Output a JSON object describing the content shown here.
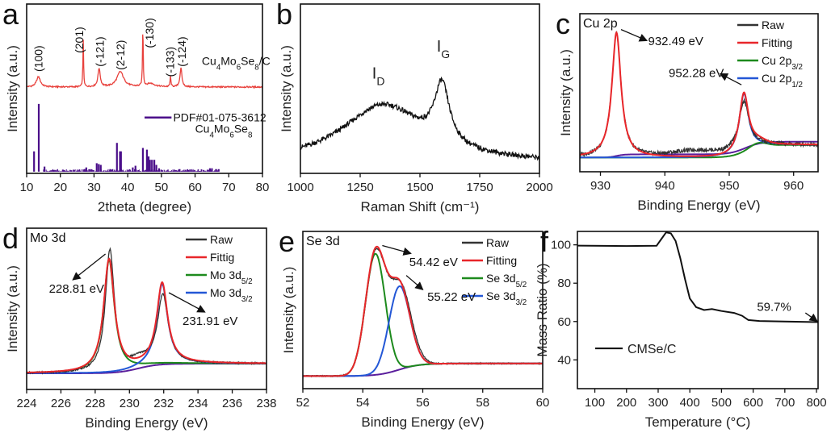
{
  "chart_data": [
    {
      "panel": "a",
      "type": "line",
      "xlabel": "2theta (degree)",
      "ylabel": "Intensity (a.u.)",
      "xlim": [
        10,
        80
      ],
      "ylim": [
        0,
        1
      ],
      "xticks": [
        10,
        20,
        30,
        40,
        50,
        60,
        70,
        80
      ],
      "series": [
        {
          "label": [
            "Cu",
            "4",
            "Mo",
            "6",
            "Se",
            "8",
            "/C"
          ],
          "color": "#e8413c",
          "baseline": [
            0.51,
            0,
            50,
            1
          ],
          "noise": 0.008,
          "seed": 1,
          "peaks": [
            {
              "c": 13.5,
              "h": 0.06,
              "w": 0.7,
              "shape": "lorentz"
            },
            {
              "c": 26.8,
              "h": 0.28,
              "w": 0.12,
              "shape": "lorentz"
            },
            {
              "c": 31.5,
              "h": 0.11,
              "w": 0.4,
              "shape": "lorentz"
            },
            {
              "c": 37.8,
              "h": 0.09,
              "w": 1.2,
              "shape": "lorentz"
            },
            {
              "c": 44.5,
              "h": 0.38,
              "w": 0.12,
              "shape": "lorentz"
            },
            {
              "c": 46.8,
              "h": 0.02,
              "w": 1.5,
              "shape": "lorentz"
            },
            {
              "c": 52.7,
              "h": 0.06,
              "w": 0.15,
              "shape": "lorentz"
            },
            {
              "c": 55.8,
              "h": 0.11,
              "w": 0.35,
              "shape": "lorentz"
            }
          ]
        }
      ],
      "reference": {
        "label": "PDF#01-075-3612",
        "sublabel": [
          "Cu",
          "4",
          "Mo",
          "6",
          "Se",
          "8"
        ],
        "color": "#4b0f8a",
        "bars": [
          [
            12.2,
            0.12
          ],
          [
            13.6,
            0.4
          ],
          [
            15.3,
            0.03
          ],
          [
            18,
            0.01
          ],
          [
            21,
            0.01
          ],
          [
            27.2,
            0.015
          ],
          [
            27.7,
            0.025
          ],
          [
            30.8,
            0.05
          ],
          [
            31.4,
            0.045
          ],
          [
            32.0,
            0.04
          ],
          [
            34.8,
            0.015
          ],
          [
            36.8,
            0.17
          ],
          [
            37.7,
            0.12
          ],
          [
            38.0,
            0.12
          ],
          [
            41.5,
            0.025
          ],
          [
            42.3,
            0.035
          ],
          [
            44.5,
            0.14
          ],
          [
            45.7,
            0.13
          ],
          [
            46.2,
            0.09
          ],
          [
            46.6,
            0.07
          ],
          [
            47.2,
            0.07
          ],
          [
            47.9,
            0.07
          ],
          [
            48.5,
            0.04
          ],
          [
            49.3,
            0.02
          ],
          [
            55.4,
            0.015
          ],
          [
            58,
            0.01
          ],
          [
            64.4,
            0.02
          ],
          [
            65,
            0.02
          ],
          [
            66.2,
            0.015
          ],
          [
            67,
            0.015
          ]
        ]
      },
      "peak_labels": [
        {
          "text": "(100)",
          "x": 13.5,
          "y": 0.6
        },
        {
          "text": "(201)",
          "x": 25.6,
          "y": 0.71
        },
        {
          "text": "(-121)",
          "x": 31.7,
          "y": 0.63
        },
        {
          "text": "(2-12)",
          "x": 37.8,
          "y": 0.61
        },
        {
          "text": "(-130)",
          "x": 46.4,
          "y": 0.74
        },
        {
          "text": "(-133)",
          "x": 52.6,
          "y": 0.57
        },
        {
          "text": "(-124)",
          "x": 56.0,
          "y": 0.63
        }
      ]
    },
    {
      "panel": "b",
      "type": "line",
      "xlabel": "Raman Shift (cm⁻¹)",
      "ylabel": "Intensity (a.u.)",
      "xlim": [
        1000,
        2000
      ],
      "ylim": [
        0,
        1
      ],
      "xticks": [
        1000,
        1250,
        1500,
        1750,
        2000
      ],
      "series": [
        {
          "color": "#111111",
          "baseline": [
            0.06,
            0.0,
            1500,
            50
          ],
          "noise": 0.03,
          "seed": 2,
          "peaks": [
            {
              "c": 1345,
              "h": 0.34,
              "w": 210,
              "shape": "lorentz"
            },
            {
              "c": 1592,
              "h": 0.35,
              "w": 38,
              "shape": "lorentz"
            }
          ]
        }
      ],
      "annotations": [
        {
          "text": [
            "I",
            "D"
          ],
          "tx": 1300,
          "ty": 0.56
        },
        {
          "text": [
            "I",
            "G"
          ],
          "tx": 1570,
          "ty": 0.72
        }
      ]
    },
    {
      "panel": "c",
      "region": "Cu 2p",
      "type": "line",
      "xlabel": "Binding Energy (eV)",
      "ylabel": "Intensity (a.u.)",
      "xlim": [
        926.8,
        963.8
      ],
      "ylim": [
        0,
        1
      ],
      "xticks": [
        930,
        940,
        950,
        960
      ],
      "series": [
        {
          "color": "#5a1e9c",
          "baseline": [
            0.09,
            0.08,
            952.5,
            1.2
          ],
          "peaks": [
            {
              "c": 932.5,
              "h": 0.02,
              "w": 0.6,
              "shape": "step"
            }
          ]
        },
        {
          "label": [
            "Cu 2p",
            "3/2"
          ],
          "color": "#1d8a1d",
          "baseline": [
            0.09,
            0.08,
            952.5,
            1.2
          ],
          "peaks": [
            {
              "c": 954.5,
              "h": 0.025,
              "w": 1.2,
              "shape": "gauss"
            }
          ]
        },
        {
          "label": [
            "Cu 2p",
            "1/2"
          ],
          "color": "#2357d6",
          "baseline": [
            0.09,
            0.08,
            952.5,
            1.2
          ],
          "peaks": [
            {
              "c": 952.28,
              "h": 0.37,
              "w": 0.85,
              "shape": "lorentz"
            }
          ]
        },
        {
          "label": [
            "Raw"
          ],
          "color": "#333333",
          "baseline": [
            0.09,
            0.08,
            952.5,
            1.2
          ],
          "noise": 0.025,
          "seed": 3,
          "peaks": [
            {
              "c": 932.49,
              "h": 0.79,
              "w": 0.85,
              "shape": "lorentz"
            },
            {
              "c": 952.28,
              "h": 0.31,
              "w": 1.0,
              "shape": "lorentz"
            },
            {
              "c": 945,
              "h": 0.04,
              "w": 4,
              "shape": "gauss"
            }
          ]
        },
        {
          "label": [
            "Fitting"
          ],
          "color": "#e8262a",
          "baseline": [
            0.09,
            0.08,
            952.5,
            1.2
          ],
          "peaks": [
            {
              "c": 932.49,
              "h": 0.79,
              "w": 0.85,
              "shape": "lorentz"
            },
            {
              "c": 952.28,
              "h": 0.37,
              "w": 0.85,
              "shape": "lorentz"
            },
            {
              "c": 954.5,
              "h": 0.025,
              "w": 1.2,
              "shape": "gauss"
            }
          ]
        }
      ],
      "legend_order": [
        3,
        4,
        1,
        2
      ],
      "annotations": [
        {
          "text": [
            "932.49 eV"
          ],
          "tx": 937.4,
          "ty": 0.8,
          "arrow": [
            933.2,
            0.9,
            937.2,
            0.83
          ]
        },
        {
          "text": [
            "952.28 eV"
          ],
          "tx": 940.6,
          "ty": 0.6,
          "arrow": [
            951.9,
            0.55,
            948.6,
            0.62
          ]
        }
      ]
    },
    {
      "panel": "d",
      "region": "Mo 3d",
      "type": "line",
      "xlabel": "Binding Energy (eV)",
      "ylabel": "Intensity (a.u.)",
      "xlim": [
        224,
        238
      ],
      "ylim": [
        0,
        1
      ],
      "xticks": [
        224,
        226,
        228,
        230,
        232,
        234,
        236,
        238
      ],
      "series": [
        {
          "color": "#5a1e9c",
          "baseline": [
            0.1,
            0.06,
            230.5,
            0.6
          ],
          "peaks": []
        },
        {
          "label": [
            "Mo 3d",
            "5/2"
          ],
          "color": "#1d8a1d",
          "baseline": [
            0.1,
            0.06,
            230.5,
            0.6
          ],
          "peaks": [
            {
              "c": 228.81,
              "h": 0.7,
              "w": 0.38,
              "shape": "lorentz"
            }
          ]
        },
        {
          "label": [
            "Mo 3d",
            "3/2"
          ],
          "color": "#2357d6",
          "baseline": [
            0.1,
            0.06,
            230.5,
            0.6
          ],
          "peaks": [
            {
              "c": 231.91,
              "h": 0.5,
              "w": 0.38,
              "shape": "lorentz"
            }
          ]
        },
        {
          "label": [
            "Raw"
          ],
          "color": "#333333",
          "baseline": [
            0.1,
            0.06,
            230.5,
            0.6
          ],
          "noise": 0.01,
          "seed": 4,
          "peaks": [
            {
              "c": 228.86,
              "h": 0.76,
              "w": 0.32,
              "shape": "lorentz"
            },
            {
              "c": 231.95,
              "h": 0.43,
              "w": 0.38,
              "shape": "lorentz"
            },
            {
              "c": 230.6,
              "h": 0.04,
              "w": 0.5,
              "shape": "gauss"
            }
          ]
        },
        {
          "label": [
            "Fittig"
          ],
          "color": "#e8262a",
          "baseline": [
            0.1,
            0.06,
            230.5,
            0.6
          ],
          "peaks": [
            {
              "c": 228.81,
              "h": 0.7,
              "w": 0.38,
              "shape": "lorentz"
            },
            {
              "c": 231.91,
              "h": 0.5,
              "w": 0.38,
              "shape": "lorentz"
            }
          ]
        }
      ],
      "legend_order": [
        3,
        4,
        1,
        2
      ],
      "annotations": [
        {
          "text": [
            "228.81 eV"
          ],
          "tx": 225.3,
          "ty": 0.6,
          "arrow": [
            228.6,
            0.84,
            226.7,
            0.68
          ]
        },
        {
          "text": [
            "231.91 eV"
          ],
          "tx": 233.1,
          "ty": 0.4,
          "arrow": [
            232.3,
            0.6,
            234.4,
            0.48
          ]
        }
      ]
    },
    {
      "panel": "e",
      "region": "Se 3d",
      "type": "line",
      "xlabel": "Binding Energy (eV)",
      "ylabel": "Intensity (a.u.)",
      "xlim": [
        52,
        60
      ],
      "ylim": [
        0,
        1
      ],
      "xticks": [
        52,
        54,
        56,
        58,
        60
      ],
      "series": [
        {
          "color": "#5a1e9c",
          "baseline": [
            0.08,
            0.08,
            55.2,
            0.35
          ],
          "peaks": []
        },
        {
          "label": [
            "Se 3d",
            "5/2"
          ],
          "color": "#1d8a1d",
          "baseline": [
            0.08,
            0.08,
            55.2,
            0.35
          ],
          "peaks": [
            {
              "c": 54.42,
              "h": 0.77,
              "w": 0.33,
              "shape": "gauss"
            }
          ]
        },
        {
          "label": [
            "Se 3d",
            "3/2"
          ],
          "color": "#2357d6",
          "baseline": [
            0.08,
            0.08,
            55.2,
            0.35
          ],
          "peaks": [
            {
              "c": 55.22,
              "h": 0.53,
              "w": 0.35,
              "shape": "gauss"
            }
          ]
        },
        {
          "label": [
            "Raw"
          ],
          "color": "#333333",
          "baseline": [
            0.08,
            0.08,
            55.2,
            0.35
          ],
          "noise": 0.008,
          "seed": 5,
          "peaks": [
            {
              "c": 54.42,
              "h": 0.75,
              "w": 0.33,
              "shape": "gauss"
            },
            {
              "c": 55.24,
              "h": 0.53,
              "w": 0.37,
              "shape": "gauss"
            }
          ]
        },
        {
          "label": [
            "Fitting"
          ],
          "color": "#e8262a",
          "baseline": [
            0.08,
            0.08,
            55.2,
            0.35
          ],
          "peaks": [
            {
              "c": 54.42,
              "h": 0.77,
              "w": 0.33,
              "shape": "gauss"
            },
            {
              "c": 55.22,
              "h": 0.53,
              "w": 0.35,
              "shape": "gauss"
            }
          ]
        }
      ],
      "legend_order": [
        3,
        4,
        1,
        2
      ],
      "annotations": [
        {
          "text": [
            "54.42 eV"
          ],
          "tx": 55.55,
          "ty": 0.78,
          "arrow": [
            54.65,
            0.91,
            55.6,
            0.86
          ]
        },
        {
          "text": [
            "55.22 eV"
          ],
          "tx": 56.15,
          "ty": 0.56,
          "arrow": [
            55.45,
            0.72,
            56.0,
            0.63
          ]
        }
      ]
    },
    {
      "panel": "f",
      "type": "line",
      "xlabel": "Temperature (°C)",
      "ylabel": "Mass Ratio (%)",
      "xlim": [
        45,
        805
      ],
      "ylim": [
        25,
        107
      ],
      "xticks": [
        100,
        200,
        300,
        400,
        500,
        600,
        700,
        800
      ],
      "yticks": [
        40,
        60,
        80,
        100
      ],
      "series": [
        {
          "label": [
            "CMSe/C"
          ],
          "color": "#111111",
          "points": [
            [
              45,
              99.6
            ],
            [
              200,
              99.4
            ],
            [
              295,
              99.5
            ],
            [
              310,
              103
            ],
            [
              325,
              106.5
            ],
            [
              340,
              106
            ],
            [
              355,
              102
            ],
            [
              370,
              93
            ],
            [
              385,
              82
            ],
            [
              400,
              72
            ],
            [
              420,
              67.5
            ],
            [
              445,
              66
            ],
            [
              470,
              66.5
            ],
            [
              500,
              65.5
            ],
            [
              540,
              64.5
            ],
            [
              565,
              63
            ],
            [
              585,
              60.8
            ],
            [
              620,
              60.3
            ],
            [
              700,
              60
            ],
            [
              805,
              59.7
            ]
          ]
        }
      ],
      "annotations": [
        {
          "text": [
            "59.7%"
          ],
          "tx": 612,
          "ty": 65.5,
          "arrow": [
            765,
            64.5,
            802,
            60.2
          ]
        }
      ]
    }
  ]
}
